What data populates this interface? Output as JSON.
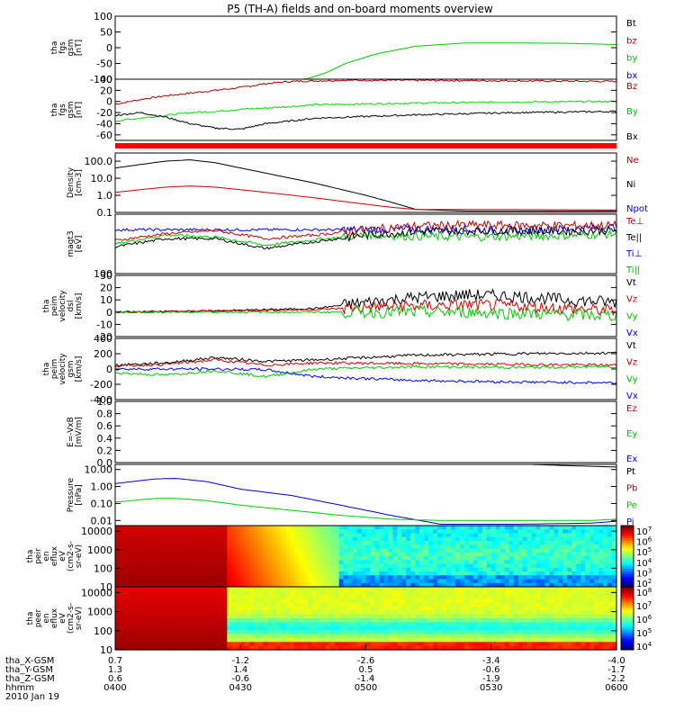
{
  "chart_data": {
    "type": "line",
    "title": "P5 (TH-A) fields and on-board moments overview",
    "panels": [
      {
        "id": "fgs_dsl",
        "ylabel": [
          "tha",
          "fgs",
          "gsm",
          "[nT]"
        ],
        "ylim": [
          -100,
          100
        ],
        "yticks": [
          100,
          50,
          0,
          -50,
          -100
        ],
        "log": false,
        "legend": [
          {
            "text": "Bt",
            "color": "#000000"
          },
          {
            "text": "bz",
            "color": "#c00000"
          },
          {
            "text": "by",
            "color": "#00c000"
          },
          {
            "text": "bx",
            "color": "#0000ff"
          }
        ],
        "series": [
          {
            "color": "#00cc00",
            "x": [
              0.0,
              0.3,
              0.38,
              0.42,
              0.46,
              0.52,
              0.6,
              0.7,
              0.8,
              0.9,
              1.0
            ],
            "y": [
              -100,
              -100,
              -100,
              -80,
              -50,
              -20,
              5,
              15,
              15,
              14,
              10
            ]
          }
        ]
      },
      {
        "id": "fgs_gse",
        "ylabel": [
          "tha",
          "fgs",
          "gsm",
          "[nT]"
        ],
        "ylim": [
          -70,
          40
        ],
        "yticks": [
          40,
          20,
          0,
          -20,
          -40,
          -60
        ],
        "log": false,
        "legend": [
          {
            "text": "Bz",
            "color": "#c00000"
          },
          {
            "text": "By",
            "color": "#00c000"
          },
          {
            "text": "Bx",
            "color": "#000000"
          }
        ],
        "series": [
          {
            "color": "#aa0000",
            "x": [
              0.0,
              0.03,
              0.06,
              0.1,
              0.15,
              0.2,
              0.25,
              0.3,
              0.35,
              0.45,
              0.6,
              0.8,
              1.0
            ],
            "y": [
              -5,
              0,
              5,
              10,
              15,
              20,
              25,
              32,
              36,
              38,
              38,
              37,
              36
            ]
          },
          {
            "color": "#00dd00",
            "x": [
              0.0,
              0.05,
              0.1,
              0.15,
              0.2,
              0.25,
              0.3,
              0.4,
              0.6,
              0.8,
              1.0
            ],
            "y": [
              -35,
              -30,
              -25,
              -20,
              -18,
              -14,
              -12,
              -6,
              -3,
              -1,
              0
            ]
          },
          {
            "color": "#000000",
            "x": [
              0.0,
              0.05,
              0.1,
              0.15,
              0.2,
              0.25,
              0.3,
              0.4,
              0.6,
              0.8,
              1.0
            ],
            "y": [
              -25,
              -20,
              -28,
              -40,
              -48,
              -50,
              -40,
              -30,
              -24,
              -20,
              -18
            ]
          }
        ]
      },
      {
        "id": "density",
        "ylabel": [
          "Density",
          "[cm-3]"
        ],
        "log": true,
        "ylim": [
          0.1,
          300
        ],
        "yticks": [
          100,
          10,
          1,
          0.1
        ],
        "yticklabels": [
          "100.0",
          "10.0",
          "1.0",
          "0.1"
        ],
        "legend": [
          {
            "text": "Ne",
            "color": "#c00000"
          },
          {
            "text": "Ni",
            "color": "#000000"
          },
          {
            "text": "Npot",
            "color": "#0000ff"
          }
        ],
        "series": [
          {
            "color": "#000000",
            "x": [
              0.0,
              0.1,
              0.15,
              0.2,
              0.3,
              0.4,
              0.5,
              0.55,
              0.6,
              0.7,
              1.0
            ],
            "y": [
              40,
              100,
              120,
              80,
              20,
              5,
              1,
              0.4,
              0.15,
              0.12,
              0.12
            ]
          },
          {
            "color": "#cc0000",
            "x": [
              0.0,
              0.1,
              0.15,
              0.2,
              0.3,
              0.4,
              0.5,
              0.55,
              0.6,
              0.7,
              1.0
            ],
            "y": [
              1.5,
              3,
              3.5,
              3,
              1.5,
              0.7,
              0.3,
              0.2,
              0.15,
              0.15,
              0.14
            ]
          }
        ]
      },
      {
        "id": "temp",
        "ylabel": [
          "magt3",
          "[eV]"
        ],
        "log": true,
        "ylim": [
          100,
          10000
        ],
        "yticks": [
          100
        ],
        "yticklabels": [
          "100"
        ],
        "legend": [
          {
            "text": "Te⊥",
            "color": "#c00000"
          },
          {
            "text": "Te||",
            "color": "#000000"
          },
          {
            "text": "Ti⊥",
            "color": "#0000ff"
          },
          {
            "text": "Ti||",
            "color": "#00c000"
          }
        ],
        "series": [
          {
            "color": "#0000ff",
            "x": [
              0.0,
              0.3,
              0.5,
              0.6,
              0.7,
              0.8,
              0.9,
              1.0
            ],
            "y": [
              3000,
              3000,
              3000,
              3100,
              3000,
              2800,
              3200,
              3600
            ]
          },
          {
            "color": "#00cc00",
            "x": [
              0.0,
              0.1,
              0.2,
              0.3,
              0.4,
              0.5,
              0.6,
              0.7,
              0.8,
              0.9,
              1.0
            ],
            "y": [
              1000,
              2000,
              1700,
              900,
              1400,
              2000,
              1800,
              1700,
              1800,
              1900,
              2200
            ]
          },
          {
            "color": "#000000",
            "x": [
              0.0,
              0.1,
              0.2,
              0.3,
              0.4,
              0.5,
              0.6,
              0.7,
              0.8,
              0.9,
              1.0
            ],
            "y": [
              800,
              1500,
              1500,
              700,
              1200,
              2000,
              2600,
              2800,
              2800,
              2700,
              2900
            ]
          },
          {
            "color": "#cc0000",
            "x": [
              0.0,
              0.1,
              0.2,
              0.3,
              0.4,
              0.5,
              0.6,
              0.7,
              0.8,
              0.9,
              1.0
            ],
            "y": [
              1300,
              2200,
              2800,
              1500,
              2000,
              3000,
              4000,
              4300,
              4200,
              4100,
              4200
            ]
          }
        ]
      },
      {
        "id": "vel_dsl",
        "ylabel": [
          "tha",
          "peim",
          "velocity",
          "dsl",
          "[km/s]"
        ],
        "ylim": [
          -20,
          30
        ],
        "yticks": [
          30,
          20,
          10,
          0,
          -10,
          -20
        ],
        "log": false,
        "legend": [
          {
            "text": "Vt",
            "color": "#000000"
          },
          {
            "text": "Vz",
            "color": "#c00000"
          },
          {
            "text": "Vy",
            "color": "#00c000"
          },
          {
            "text": "Vx",
            "color": "#0000ff"
          }
        ],
        "series": [
          {
            "color": "#000000",
            "x": [
              0.0,
              0.2,
              0.4,
              0.5,
              0.6,
              0.7,
              0.8,
              0.9,
              1.0
            ],
            "y": [
              0,
              1,
              3,
              8,
              12,
              14,
              13,
              10,
              8
            ]
          },
          {
            "color": "#dd0000",
            "x": [
              0.0,
              0.2,
              0.4,
              0.5,
              0.6,
              0.7,
              0.8,
              0.9,
              1.0
            ],
            "y": [
              0,
              1,
              2,
              4,
              5,
              6,
              5,
              3,
              1
            ]
          },
          {
            "color": "#00cc00",
            "x": [
              0.0,
              0.2,
              0.4,
              0.5,
              0.6,
              0.7,
              0.8,
              0.9,
              1.0
            ],
            "y": [
              0,
              0,
              0,
              0,
              0,
              0,
              -1,
              -2,
              -3
            ]
          }
        ]
      },
      {
        "id": "vel_gsm",
        "ylabel": [
          "tha",
          "peim",
          "velocity",
          "gsm",
          "[km/s]"
        ],
        "ylim": [
          -400,
          400
        ],
        "yticks": [
          400,
          200,
          0,
          -200,
          -400
        ],
        "log": false,
        "legend": [
          {
            "text": "Vt",
            "color": "#000000"
          },
          {
            "text": "Vz",
            "color": "#c00000"
          },
          {
            "text": "Vy",
            "color": "#00c000"
          },
          {
            "text": "Vx",
            "color": "#0000ff"
          }
        ],
        "series": [
          {
            "color": "#000000",
            "x": [
              0.0,
              0.1,
              0.2,
              0.3,
              0.4,
              0.6,
              0.8,
              1.0
            ],
            "y": [
              50,
              80,
              150,
              100,
              120,
              180,
              200,
              210
            ]
          },
          {
            "color": "#dd0000",
            "x": [
              0.0,
              0.1,
              0.2,
              0.3,
              0.4,
              0.6,
              0.8,
              1.0
            ],
            "y": [
              40,
              60,
              120,
              50,
              80,
              70,
              60,
              50
            ]
          },
          {
            "color": "#00cc00",
            "x": [
              0.0,
              0.1,
              0.2,
              0.3,
              0.4,
              0.6,
              0.8,
              1.0
            ],
            "y": [
              -50,
              -80,
              -20,
              -100,
              0,
              30,
              20,
              30
            ]
          },
          {
            "color": "#0000ff",
            "x": [
              0.0,
              0.1,
              0.2,
              0.3,
              0.4,
              0.6,
              0.8,
              1.0
            ],
            "y": [
              0,
              0,
              0,
              -10,
              -100,
              -150,
              -170,
              -180
            ]
          }
        ]
      },
      {
        "id": "efield",
        "ylabel": [
          "E=-VxB",
          "[mV/m]"
        ],
        "ylim": [
          0,
          1
        ],
        "yticks": [
          1.0,
          0.8,
          0.6,
          0.4,
          0.2,
          0.0
        ],
        "yticklabels": [
          "1.0",
          "0.8",
          "0.6",
          "0.4",
          "0.2",
          "0.0"
        ],
        "log": false,
        "legend": [
          {
            "text": "Ez",
            "color": "#c00000"
          },
          {
            "text": "Ey",
            "color": "#00c000"
          },
          {
            "text": "Ex",
            "color": "#0000ff"
          }
        ],
        "series": []
      },
      {
        "id": "pressure",
        "ylabel": [
          "Pressure",
          "[nPa]"
        ],
        "log": true,
        "ylim": [
          0.005,
          20
        ],
        "yticks": [
          10,
          1,
          0.1,
          0.01
        ],
        "yticklabels": [
          "10.00",
          "1.00",
          "0.10",
          "0.01"
        ],
        "legend": [
          {
            "text": "Pt",
            "color": "#000000"
          },
          {
            "text": "Pb",
            "color": "#c00000"
          },
          {
            "text": "Pe",
            "color": "#00c000"
          },
          {
            "text": "Pi",
            "color": "#0000ff"
          }
        ],
        "series": [
          {
            "color": "#0000cc",
            "x": [
              0.0,
              0.08,
              0.12,
              0.18,
              0.25,
              0.35,
              0.45,
              0.55,
              0.65,
              0.8,
              0.95,
              1.0
            ],
            "y": [
              1.5,
              2.8,
              3,
              2,
              0.7,
              0.3,
              0.08,
              0.02,
              0.006,
              0.006,
              0.007,
              0.009
            ]
          },
          {
            "color": "#00cc00",
            "x": [
              0.0,
              0.08,
              0.12,
              0.18,
              0.25,
              0.35,
              0.45,
              0.55,
              0.65,
              0.8,
              0.95,
              1.0
            ],
            "y": [
              0.12,
              0.2,
              0.2,
              0.15,
              0.08,
              0.04,
              0.02,
              0.012,
              0.01,
              0.01,
              0.01,
              0.012
            ]
          },
          {
            "color": "#000000",
            "x": [
              0.83,
              0.9,
              1.0
            ],
            "y": [
              20,
              17,
              14
            ]
          }
        ]
      },
      {
        "id": "ion_spec",
        "type": "heatmap",
        "ylabel": [
          "tha",
          "peir",
          "en",
          "eflux",
          "eV",
          "(cm2-s-",
          "sr-eV)"
        ],
        "log": true,
        "ylim": [
          10,
          20000
        ],
        "yticks": [
          10000,
          1000,
          100,
          10
        ],
        "yticklabels": [
          "10000",
          "1000",
          "100",
          "10"
        ],
        "colorbar": {
          "min_exp": 2,
          "max_exp": 7,
          "labels": [
            "10^7",
            "10^6",
            "10^5",
            "10^4",
            "10^3",
            "10^2"
          ]
        }
      },
      {
        "id": "ele_spec",
        "type": "heatmap",
        "ylabel": [
          "tha",
          "peer",
          "en",
          "eflux",
          "eV",
          "(cm2-s-",
          "sr-eV)"
        ],
        "log": true,
        "ylim": [
          10,
          20000
        ],
        "yticks": [
          10000,
          1000,
          100,
          10
        ],
        "yticklabels": [
          "10000",
          "1000",
          "100",
          "10"
        ],
        "colorbar": {
          "min_exp": 4,
          "max_exp": 8,
          "labels": [
            "10^8",
            "10^7",
            "10^6",
            "10^5",
            "10^4"
          ]
        }
      }
    ],
    "xaxis": {
      "rows": [
        {
          "label": "tha_X-GSM",
          "values": [
            "0.7",
            "-1.2",
            "-2.6",
            "-3.4",
            "-4.0"
          ]
        },
        {
          "label": "tha_Y-GSM",
          "values": [
            "1.3",
            "1.4",
            "0.5",
            "-0.6",
            "-1.7"
          ]
        },
        {
          "label": "tha_Z-GSM",
          "values": [
            "0.6",
            "-0.6",
            "-1.4",
            "-1.9",
            "-2.2"
          ]
        },
        {
          "label": "hhmm",
          "values": [
            "0400",
            "0430",
            "0500",
            "0530",
            "0600"
          ]
        }
      ],
      "date": "2010 Jan 19"
    }
  }
}
